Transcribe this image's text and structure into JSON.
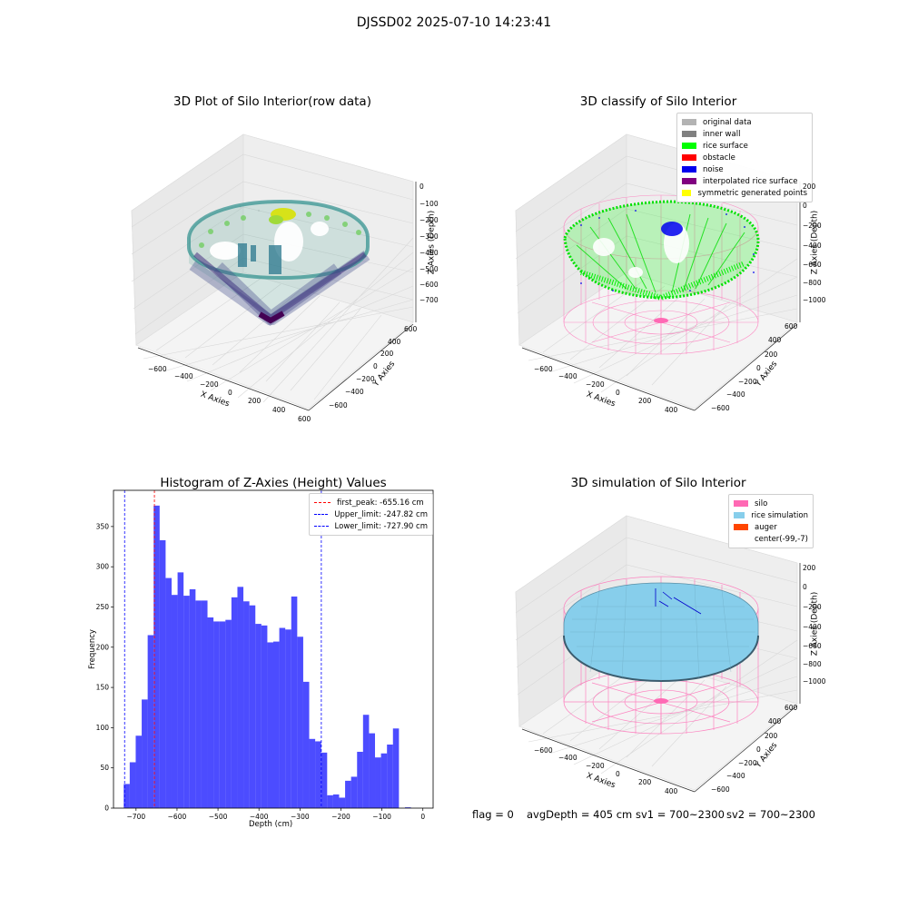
{
  "suptitle": "DJSSD02 2025-07-10 14:23:41",
  "panels": {
    "raw": {
      "title": "3D Plot of Silo Interior(row data)",
      "xlabel": "X Axies",
      "ylabel": "Y Axies",
      "zlabel": "Z Axies (Depth)",
      "xticks": [
        "−600",
        "−400",
        "−200",
        "0",
        "200",
        "400",
        "600"
      ],
      "yticks": [
        "−600",
        "−400",
        "−200",
        "0",
        "200",
        "400",
        "600"
      ],
      "zticks": [
        "0",
        "−100",
        "−200",
        "−300",
        "−400",
        "−500",
        "−600",
        "−700"
      ]
    },
    "classify": {
      "title": "3D classify of Silo Interior",
      "xlabel": "X Axies",
      "ylabel": "Y Axies",
      "zlabel": "Z Axies (Depth)",
      "xticks": [
        "−600",
        "−400",
        "−200",
        "0",
        "200",
        "400"
      ],
      "yticks": [
        "−600",
        "−400",
        "−200",
        "0",
        "200",
        "400",
        "600"
      ],
      "zticks": [
        "200",
        "0",
        "−200",
        "−400",
        "−600",
        "−800",
        "−1000"
      ],
      "legend": [
        {
          "label": "original data",
          "color": "#b3b3b3"
        },
        {
          "label": "inner wall",
          "color": "#808080"
        },
        {
          "label": "rice surface",
          "color": "#00ff00"
        },
        {
          "label": "obstacle",
          "color": "#ff0000"
        },
        {
          "label": "noise",
          "color": "#0000ee"
        },
        {
          "label": "interpolated rice surface",
          "color": "#800080"
        },
        {
          "label": "symmetric generated points",
          "color": "#ffff00"
        }
      ]
    },
    "simulation": {
      "title": "3D simulation of Silo Interior",
      "xlabel": "X Axies",
      "ylabel": "Y Axies",
      "zlabel": "Z Axies (Depth)",
      "xticks": [
        "−600",
        "−400",
        "−200",
        "0",
        "200",
        "400"
      ],
      "yticks": [
        "−600",
        "−400",
        "−200",
        "0",
        "200",
        "400",
        "600"
      ],
      "zticks": [
        "200",
        "0",
        "−200",
        "−400",
        "−600",
        "−800",
        "−1000"
      ],
      "legend": [
        {
          "label": "silo",
          "color": "#ff69b4"
        },
        {
          "label": "rice simulation",
          "color": "#87ceeb"
        },
        {
          "label": "auger",
          "color": "#ff4500"
        },
        {
          "label": "center(-99,-7)",
          "color": ""
        }
      ]
    }
  },
  "status": {
    "flag": "flag = 0",
    "avg_depth": "avgDepth = 405 cm",
    "sv1": "sv1 = 700~2300",
    "sv2": "sv2 = 700~2300"
  },
  "chart_data": {
    "type": "bar",
    "title": "Histogram of Z-Axies (Height) Values",
    "xlabel": "Depth (cm)",
    "ylabel": "Frequency",
    "xlim": [
      -755,
      25
    ],
    "ylim": [
      0,
      395
    ],
    "xticks": [
      -700,
      -600,
      -500,
      -400,
      -300,
      -200,
      -100,
      0
    ],
    "yticks": [
      0,
      50,
      100,
      150,
      200,
      250,
      300,
      350
    ],
    "bin_start": -730,
    "bin_width": 14.6,
    "values": [
      30,
      57,
      90,
      135,
      215,
      376,
      333,
      286,
      265,
      293,
      264,
      272,
      258,
      258,
      237,
      232,
      232,
      234,
      262,
      275,
      257,
      252,
      229,
      227,
      206,
      207,
      224,
      222,
      263,
      213,
      157,
      86,
      83,
      69,
      16,
      17,
      13,
      34,
      39,
      70,
      116,
      93,
      63,
      68,
      79,
      99,
      0,
      1
    ],
    "bar_color": "#0000ff",
    "vlines": [
      {
        "x": -655.16,
        "color": "#ff0000",
        "label": "first_peak: -655.16 cm"
      },
      {
        "x": -247.82,
        "color": "#0000ff",
        "label": "Upper_limit: -247.82 cm"
      },
      {
        "x": -727.9,
        "color": "#0000ff",
        "label": "Lower_limit: -727.90 cm"
      }
    ],
    "legend_position": "top-right"
  }
}
